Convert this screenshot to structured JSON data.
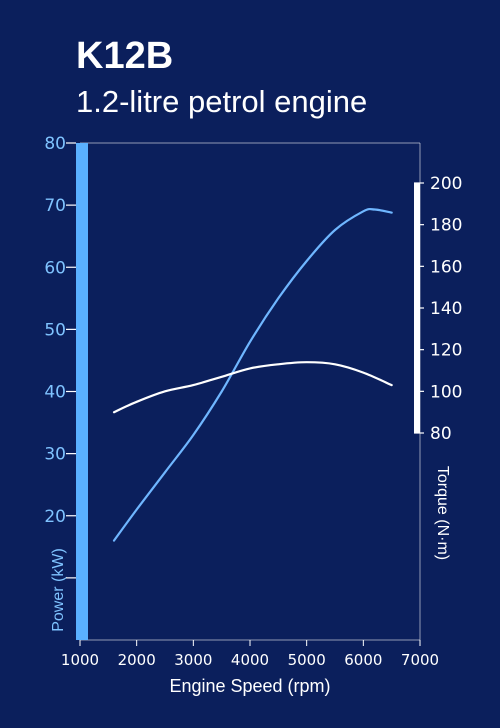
{
  "chart_data": {
    "type": "line",
    "title": "K12B",
    "subtitle": "1.2-litre petrol engine",
    "xlabel": "Engine Speed (rpm)",
    "ylabel_left": "Power (kW)",
    "ylabel_right": "Torque (N·m)",
    "x_ticks": [
      "1000",
      "2000",
      "3000",
      "4000",
      "5000",
      "6000",
      "7000"
    ],
    "y_left_ticks": [
      "20",
      "30",
      "40",
      "50",
      "60",
      "70",
      "80"
    ],
    "y_right_ticks": [
      "80",
      "100",
      "120",
      "140",
      "160",
      "180",
      "200"
    ],
    "xlim": [
      1000,
      7000
    ],
    "ylim_left": [
      0,
      80
    ],
    "ylim_right": [
      80,
      200
    ],
    "grid": false,
    "series": [
      {
        "name": "Power (kW)",
        "axis": "left",
        "color": "#6fb6ff",
        "points": [
          [
            1600,
            16
          ],
          [
            2000,
            21
          ],
          [
            2500,
            27
          ],
          [
            3000,
            33
          ],
          [
            3500,
            40
          ],
          [
            4000,
            48
          ],
          [
            4500,
            55
          ],
          [
            5000,
            61
          ],
          [
            5500,
            66
          ],
          [
            6000,
            69
          ],
          [
            6200,
            69.3
          ],
          [
            6500,
            68.8
          ]
        ]
      },
      {
        "name": "Torque (N·m)",
        "axis": "right",
        "color": "#ffffff",
        "points": [
          [
            1600,
            90
          ],
          [
            2000,
            95
          ],
          [
            2500,
            100
          ],
          [
            3000,
            103
          ],
          [
            3500,
            107
          ],
          [
            4000,
            111
          ],
          [
            4500,
            113
          ],
          [
            5000,
            114
          ],
          [
            5500,
            113
          ],
          [
            6000,
            109
          ],
          [
            6500,
            103
          ]
        ]
      }
    ]
  },
  "colors": {
    "background": "#0b1f5c",
    "power_axis": "#7fc3ff",
    "power_bar": "#5ab0ff",
    "torque_axis": "#ffffff",
    "text": "#ffffff"
  }
}
